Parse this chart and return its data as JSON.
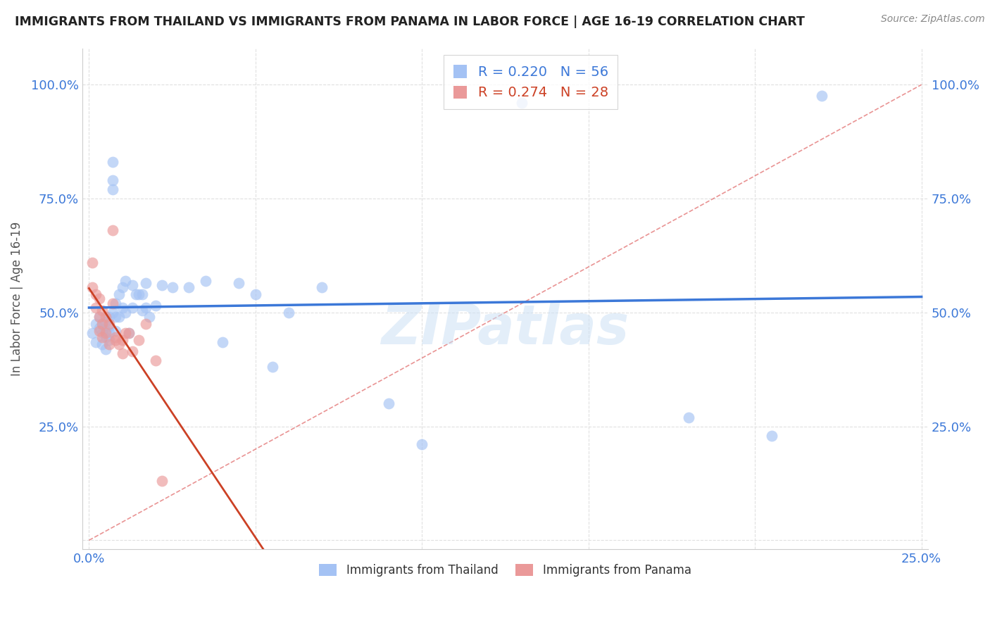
{
  "title": "IMMIGRANTS FROM THAILAND VS IMMIGRANTS FROM PANAMA IN LABOR FORCE | AGE 16-19 CORRELATION CHART",
  "source": "Source: ZipAtlas.com",
  "ylabel": "In Labor Force | Age 16-19",
  "watermark": "ZIPatlas",
  "legend_thailand": "Immigrants from Thailand",
  "legend_panama": "Immigrants from Panama",
  "r_thailand": 0.22,
  "n_thailand": 56,
  "r_panama": 0.274,
  "n_panama": 28,
  "xlim": [
    -0.002,
    0.252
  ],
  "ylim": [
    -0.02,
    1.08
  ],
  "xticks": [
    0.0,
    0.05,
    0.1,
    0.15,
    0.2,
    0.25
  ],
  "yticks": [
    0.0,
    0.25,
    0.5,
    0.75,
    1.0
  ],
  "xticklabels": [
    "0.0%",
    "",
    "",
    "",
    "",
    "25.0%"
  ],
  "yticklabels": [
    "",
    "25.0%",
    "50.0%",
    "75.0%",
    "100.0%"
  ],
  "color_thailand": "#a4c2f4",
  "color_panama": "#ea9999",
  "color_trendline_thailand": "#3c78d8",
  "color_trendline_panama": "#cc4125",
  "color_diagonal": "#e06666",
  "figsize": [
    14.06,
    8.92
  ],
  "dpi": 100,
  "thailand_x": [
    0.001,
    0.002,
    0.002,
    0.003,
    0.003,
    0.004,
    0.004,
    0.004,
    0.005,
    0.005,
    0.005,
    0.005,
    0.006,
    0.006,
    0.006,
    0.006,
    0.007,
    0.007,
    0.007,
    0.007,
    0.008,
    0.008,
    0.008,
    0.009,
    0.009,
    0.01,
    0.01,
    0.011,
    0.011,
    0.012,
    0.013,
    0.013,
    0.014,
    0.015,
    0.016,
    0.016,
    0.017,
    0.017,
    0.018,
    0.02,
    0.022,
    0.025,
    0.03,
    0.035,
    0.04,
    0.045,
    0.05,
    0.055,
    0.06,
    0.07,
    0.09,
    0.1,
    0.13,
    0.18,
    0.205,
    0.22
  ],
  "thailand_y": [
    0.455,
    0.475,
    0.435,
    0.49,
    0.465,
    0.475,
    0.455,
    0.43,
    0.48,
    0.46,
    0.445,
    0.42,
    0.49,
    0.47,
    0.455,
    0.44,
    0.83,
    0.79,
    0.77,
    0.5,
    0.52,
    0.49,
    0.46,
    0.54,
    0.49,
    0.555,
    0.51,
    0.57,
    0.5,
    0.455,
    0.56,
    0.51,
    0.54,
    0.54,
    0.54,
    0.505,
    0.565,
    0.51,
    0.49,
    0.515,
    0.56,
    0.555,
    0.555,
    0.57,
    0.435,
    0.565,
    0.54,
    0.38,
    0.5,
    0.555,
    0.3,
    0.21,
    0.96,
    0.27,
    0.23,
    0.975
  ],
  "panama_x": [
    0.001,
    0.001,
    0.002,
    0.002,
    0.003,
    0.003,
    0.003,
    0.004,
    0.004,
    0.004,
    0.005,
    0.005,
    0.006,
    0.006,
    0.007,
    0.007,
    0.008,
    0.008,
    0.009,
    0.01,
    0.01,
    0.011,
    0.012,
    0.013,
    0.015,
    0.017,
    0.02,
    0.022
  ],
  "panama_y": [
    0.61,
    0.555,
    0.54,
    0.51,
    0.53,
    0.49,
    0.46,
    0.505,
    0.475,
    0.445,
    0.49,
    0.455,
    0.475,
    0.43,
    0.68,
    0.52,
    0.445,
    0.44,
    0.43,
    0.44,
    0.41,
    0.455,
    0.455,
    0.415,
    0.44,
    0.475,
    0.395,
    0.13
  ]
}
